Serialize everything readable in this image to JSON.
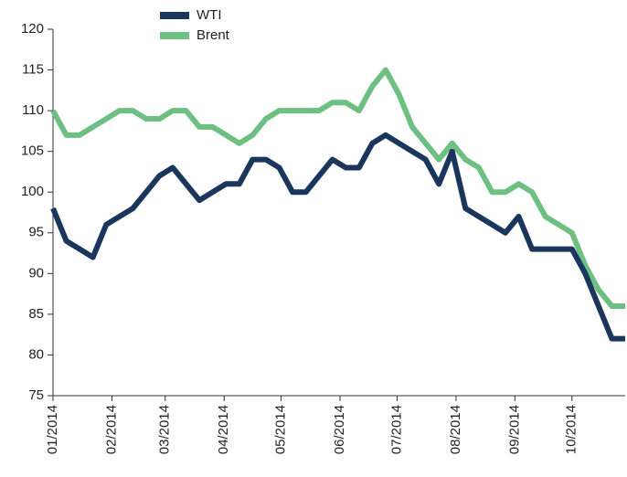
{
  "chart_data": {
    "type": "line",
    "series": [
      {
        "name": "WTI",
        "color": "#1b365d",
        "values": [
          98,
          94,
          93,
          92,
          96,
          97,
          98,
          100,
          102,
          103,
          101,
          99,
          100,
          101,
          101,
          104,
          104,
          103,
          100,
          100,
          102,
          104,
          103,
          103,
          106,
          107,
          106,
          105,
          104,
          101,
          105,
          98,
          97,
          96,
          95,
          97,
          93,
          93,
          93,
          93,
          90,
          86,
          82,
          82
        ]
      },
      {
        "name": "Brent",
        "color": "#6dbf82",
        "values": [
          110,
          107,
          107,
          108,
          109,
          110,
          110,
          109,
          109,
          110,
          110,
          108,
          108,
          107,
          106,
          107,
          109,
          110,
          110,
          110,
          110,
          111,
          111,
          110,
          113,
          115,
          112,
          108,
          106,
          104,
          106,
          104,
          103,
          100,
          100,
          101,
          100,
          97,
          96,
          95,
          91,
          88,
          86,
          86
        ]
      }
    ],
    "xlim": [
      0,
      43
    ],
    "xticks": [
      {
        "value": 0,
        "label": "01/2014"
      },
      {
        "value": 4.43,
        "label": "02/2014"
      },
      {
        "value": 8.43,
        "label": "03/2014"
      },
      {
        "value": 12.86,
        "label": "04/2014"
      },
      {
        "value": 17.14,
        "label": "05/2014"
      },
      {
        "value": 21.57,
        "label": "06/2014"
      },
      {
        "value": 25.86,
        "label": "07/2014"
      },
      {
        "value": 30.29,
        "label": "08/2014"
      },
      {
        "value": 34.71,
        "label": "09/2014"
      },
      {
        "value": 39.0,
        "label": "10/2014"
      }
    ],
    "ylim": [
      75,
      120
    ],
    "yticks": [
      75,
      80,
      85,
      90,
      95,
      100,
      105,
      110,
      115,
      120
    ],
    "grid": false
  }
}
